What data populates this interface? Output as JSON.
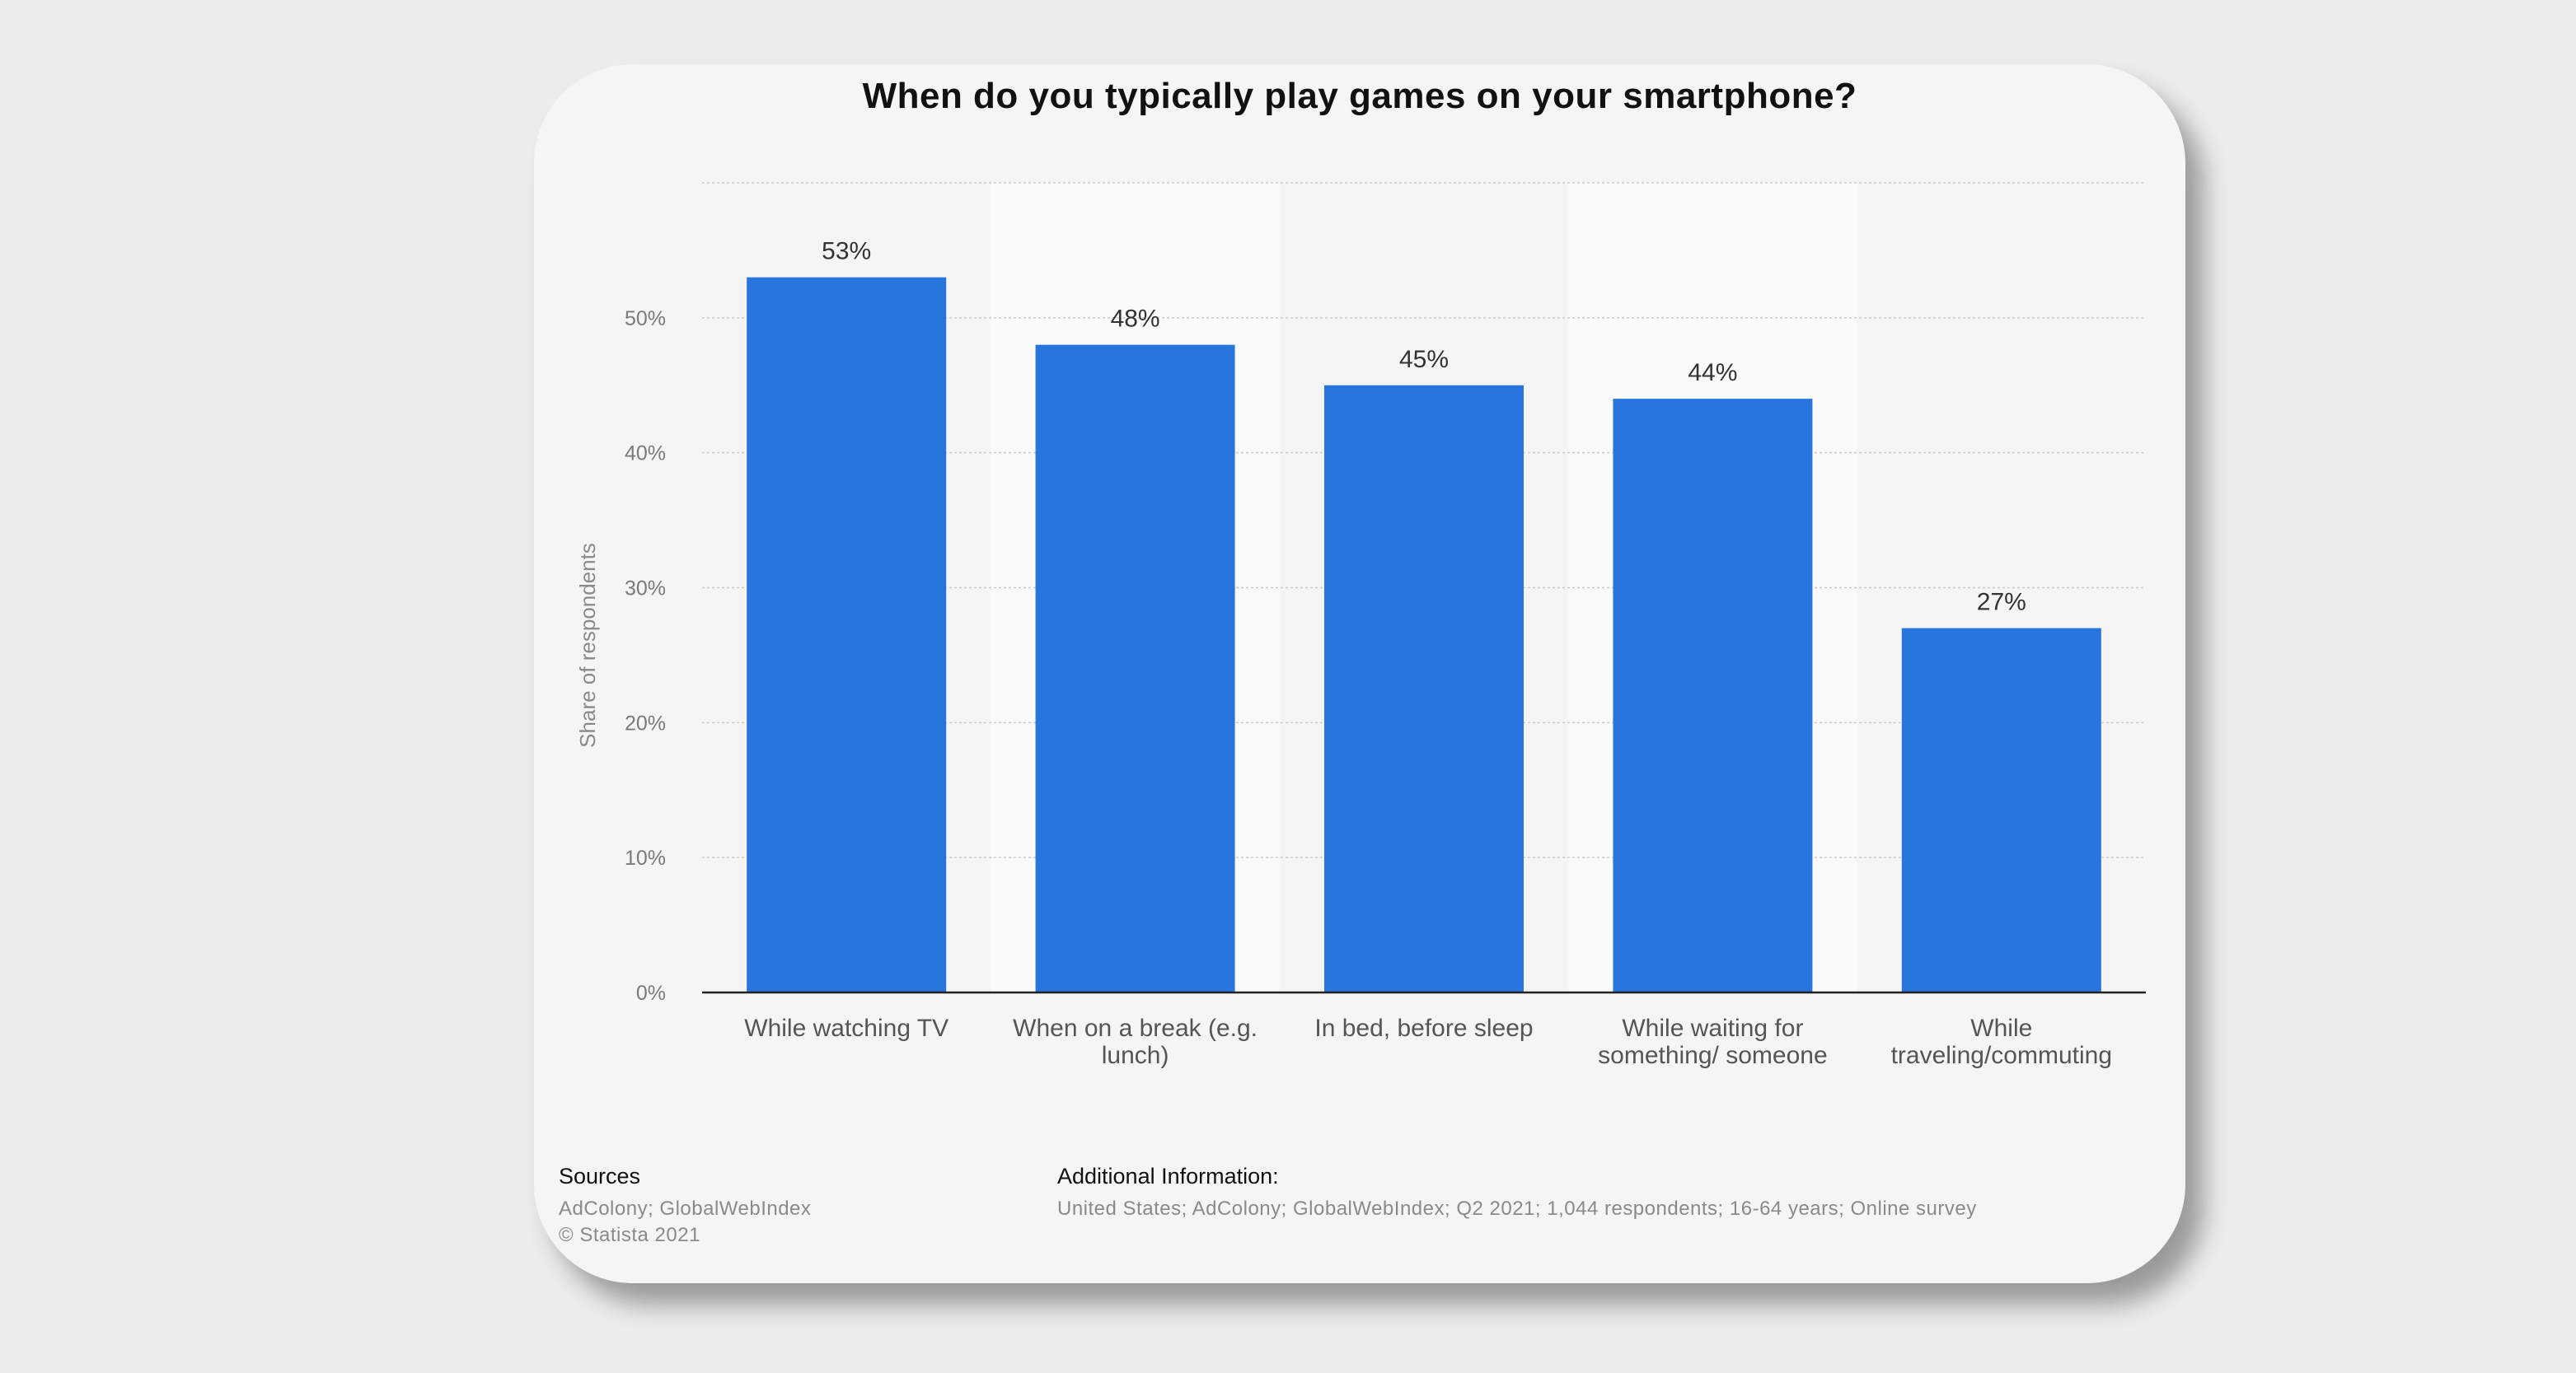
{
  "chart_data": {
    "type": "bar",
    "title": "When do you typically play games on your smartphone?",
    "ylabel": "Share of respondents",
    "xlabel": "",
    "ylim": [
      0,
      60
    ],
    "yticks": [
      0,
      10,
      20,
      30,
      40,
      50
    ],
    "ytick_labels": [
      "0%",
      "10%",
      "20%",
      "30%",
      "40%",
      "50%"
    ],
    "categories": [
      [
        "While watching TV"
      ],
      [
        "When on a break (e.g.",
        "lunch)"
      ],
      [
        "In bed, before sleep"
      ],
      [
        "While waiting for",
        "something/ someone"
      ],
      [
        "While",
        "traveling/commuting"
      ]
    ],
    "values": [
      53,
      48,
      45,
      44,
      27
    ],
    "value_labels": [
      "53%",
      "48%",
      "45%",
      "44%",
      "27%"
    ],
    "grid": true,
    "colors": {
      "bar": "#2876dd",
      "grid": "#cccccc",
      "axis": "#222222",
      "band": "#fafafa"
    }
  },
  "footer": {
    "sources_heading": "Sources",
    "sources_line1": "AdColony; GlobalWebIndex",
    "copyright": "© Statista 2021",
    "additional_heading": "Additional Information:",
    "additional_text": "United States; AdColony; GlobalWebIndex; Q2 2021; 1,044 respondents; 16-64 years; Online survey"
  }
}
